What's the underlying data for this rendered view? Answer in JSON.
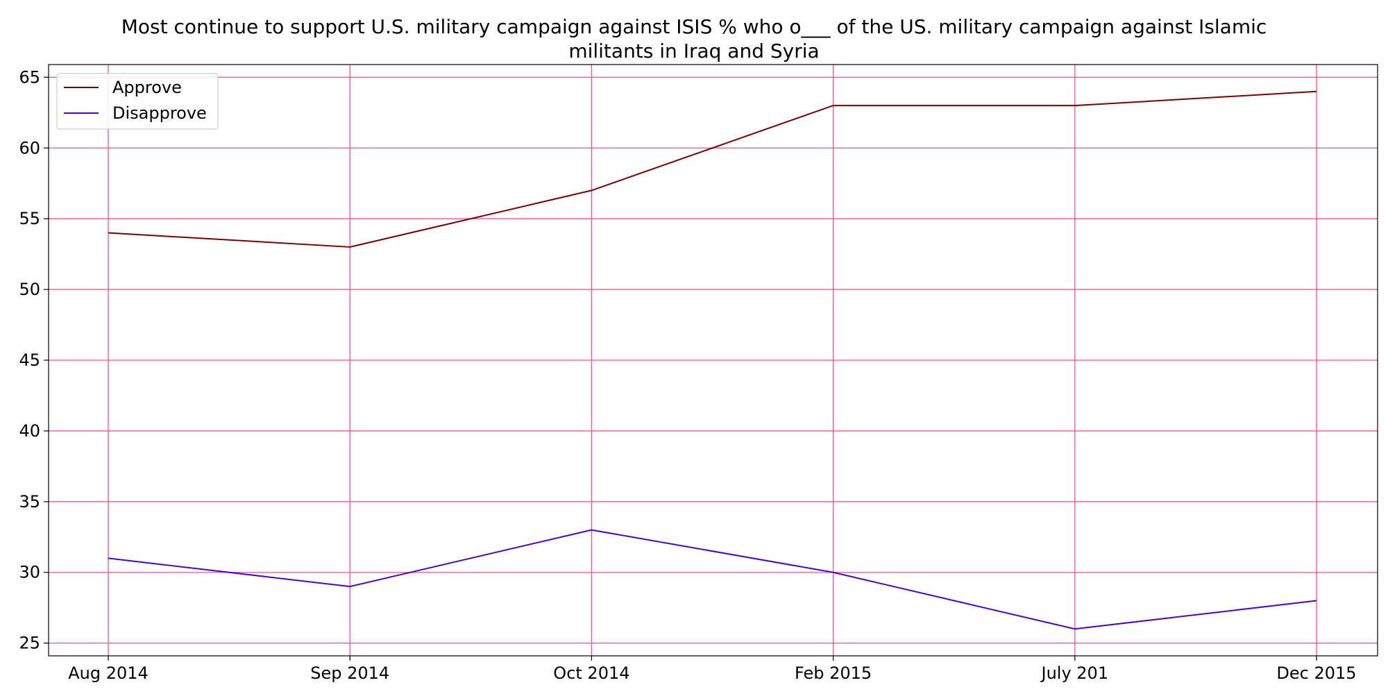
{
  "chart_data": {
    "type": "line",
    "title_lines": [
      "Most continue to support U.S. military campaign against ISIS % who o___ of the US. military campaign against Islamic",
      "militants in Iraq and Syria"
    ],
    "xlabel": "",
    "ylabel": "",
    "categories": [
      "Aug 2014",
      "Sep 2014",
      "Oct 2014",
      "Feb 2015",
      "July 201",
      "Dec 2015"
    ],
    "series": [
      {
        "name": "Approve",
        "values": [
          54,
          53,
          57,
          63,
          63,
          64
        ],
        "color": "#7f0000"
      },
      {
        "name": "Disapprove",
        "values": [
          31,
          29,
          33,
          30,
          26,
          28
        ],
        "color": "#4b00e0"
      }
    ],
    "ylim": [
      24.1,
      65.9
    ],
    "yticks": [
      25,
      30,
      35,
      40,
      45,
      50,
      55,
      60,
      65
    ],
    "grid": true,
    "grid_color": "#ff4f8b",
    "legend_position": "upper-left"
  }
}
